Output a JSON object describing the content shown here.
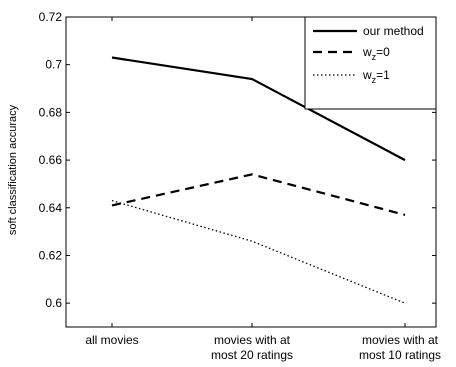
{
  "chart_data": {
    "type": "line",
    "title": "",
    "xlabel": "",
    "ylabel": "soft classification accuracy",
    "categories": [
      [
        "all movies"
      ],
      [
        "movies with at",
        "most 20 ratings"
      ],
      [
        "movies with at",
        "most 10 ratings"
      ]
    ],
    "ylim": [
      0.59,
      0.72
    ],
    "yticks": [
      0.6,
      0.62,
      0.64,
      0.66,
      0.68,
      0.7,
      0.72
    ],
    "ytick_labels": [
      "0.6",
      "0.62",
      "0.64",
      "0.66",
      "0.68",
      "0.7",
      "0.72"
    ],
    "grid": false,
    "legend_position": "top-right",
    "series": [
      {
        "name": "our method",
        "label_main": "our method",
        "label_sub": "",
        "label_tail": "",
        "style": "solid",
        "color": "#000000",
        "values": [
          0.703,
          0.694,
          0.66
        ]
      },
      {
        "name": "w_z=0",
        "label_main": "w",
        "label_sub": "z",
        "label_tail": "=0",
        "style": "dashed",
        "color": "#000000",
        "values": [
          0.641,
          0.654,
          0.637
        ]
      },
      {
        "name": "w_z=1",
        "label_main": "w",
        "label_sub": "z",
        "label_tail": "=1",
        "style": "dotted",
        "color": "#000000",
        "values": [
          0.643,
          0.626,
          0.6
        ]
      }
    ]
  }
}
